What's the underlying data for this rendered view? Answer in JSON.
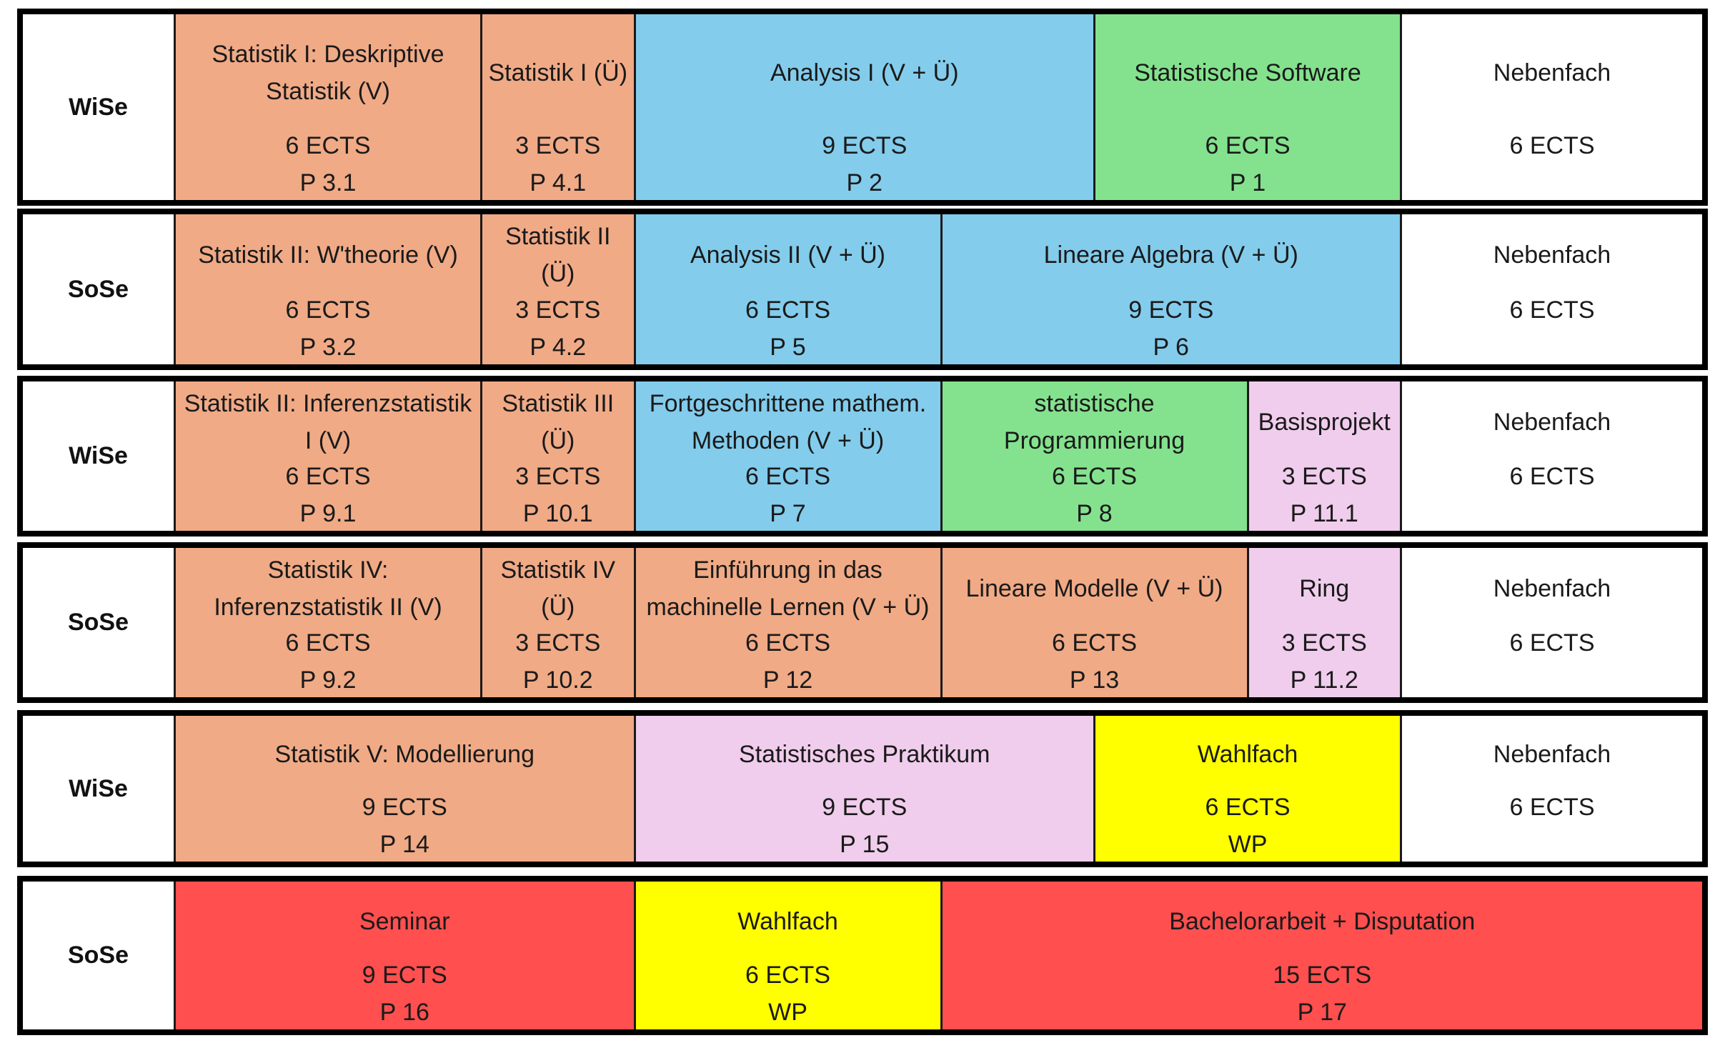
{
  "colors": {
    "statistik": "#f0aa86",
    "mathematik": "#83ccec",
    "informatik": "#84e28e",
    "projekt": "#f0cdec",
    "wahlfach": "#ffff00",
    "abschluss": "#ff4f4f",
    "nebenfach": "#ffffff"
  },
  "semesters": [
    {
      "label": "WiSe",
      "modules": [
        {
          "title": "Statistik I: Deskriptive Statistik (V)",
          "ects": "6 ECTS",
          "code": "P 3.1",
          "color": "statistik"
        },
        {
          "title": "Statistik I (Ü)",
          "ects": "3 ECTS",
          "code": "P 4.1",
          "color": "statistik"
        },
        {
          "title": "Analysis I (V + Ü)",
          "ects": "9 ECTS",
          "code": "P 2",
          "color": "mathematik"
        },
        {
          "title": "Statistische Software",
          "ects": "6 ECTS",
          "code": "P 1",
          "color": "informatik"
        },
        {
          "title": "Nebenfach",
          "ects": "6 ECTS",
          "code": "",
          "color": "nebenfach"
        }
      ]
    },
    {
      "label": "SoSe",
      "modules": [
        {
          "title": "Statistik II: W'theorie (V)",
          "ects": "6 ECTS",
          "code": "P 3.2",
          "color": "statistik"
        },
        {
          "title": "Statistik II (Ü)",
          "ects": "3 ECTS",
          "code": "P 4.2",
          "color": "statistik"
        },
        {
          "title": "Analysis II (V + Ü)",
          "ects": "6 ECTS",
          "code": "P 5",
          "color": "mathematik"
        },
        {
          "title": "Lineare Algebra (V + Ü)",
          "ects": "9 ECTS",
          "code": "P 6",
          "color": "mathematik"
        },
        {
          "title": "Nebenfach",
          "ects": "6 ECTS",
          "code": "",
          "color": "nebenfach"
        }
      ]
    },
    {
      "label": "WiSe",
      "modules": [
        {
          "title": "Statistik II: Inferenzstatistik I (V)",
          "ects": "6 ECTS",
          "code": "P 9.1",
          "color": "statistik"
        },
        {
          "title": "Statistik III (Ü)",
          "ects": "3 ECTS",
          "code": "P 10.1",
          "color": "statistik"
        },
        {
          "title": "Fortgeschrittene mathem. Methoden (V + Ü)",
          "ects": "6 ECTS",
          "code": "P 7",
          "color": "mathematik"
        },
        {
          "title": "statistische Programmierung",
          "ects": "6 ECTS",
          "code": "P 8",
          "color": "informatik"
        },
        {
          "title": "Basisprojekt",
          "ects": "3 ECTS",
          "code": "P 11.1",
          "color": "projekt"
        },
        {
          "title": "Nebenfach",
          "ects": "6 ECTS",
          "code": "",
          "color": "nebenfach"
        }
      ]
    },
    {
      "label": "SoSe",
      "modules": [
        {
          "title": "Statistik IV: Inferenzstatistik II (V)",
          "ects": "6 ECTS",
          "code": "P 9.2",
          "color": "statistik"
        },
        {
          "title": "Statistik IV (Ü)",
          "ects": "3 ECTS",
          "code": "P 10.2",
          "color": "statistik"
        },
        {
          "title": "Einführung in das machinelle Lernen (V + Ü)",
          "ects": "6 ECTS",
          "code": "P 12",
          "color": "statistik"
        },
        {
          "title": "Lineare Modelle (V + Ü)",
          "ects": "6 ECTS",
          "code": "P 13",
          "color": "statistik"
        },
        {
          "title": "Ring",
          "ects": "3 ECTS",
          "code": "P 11.2",
          "color": "projekt"
        },
        {
          "title": "Nebenfach",
          "ects": "6 ECTS",
          "code": "",
          "color": "nebenfach"
        }
      ]
    },
    {
      "label": "WiSe",
      "modules": [
        {
          "title": "Statistik V: Modellierung",
          "ects": "9 ECTS",
          "code": "P 14",
          "color": "statistik"
        },
        {
          "title": "Statistisches Praktikum",
          "ects": "9 ECTS",
          "code": "P 15",
          "color": "projekt"
        },
        {
          "title": "Wahlfach",
          "ects": "6 ECTS",
          "code": "WP",
          "color": "wahlfach"
        },
        {
          "title": "Nebenfach",
          "ects": "6 ECTS",
          "code": "",
          "color": "nebenfach"
        }
      ]
    },
    {
      "label": "SoSe",
      "modules": [
        {
          "title": "Seminar",
          "ects": "9 ECTS",
          "code": "P 16",
          "color": "abschluss"
        },
        {
          "title": "Wahlfach",
          "ects": "6 ECTS",
          "code": "WP",
          "color": "wahlfach"
        },
        {
          "title": "Bachelorarbeit + Disputation",
          "ects": "15 ECTS",
          "code": "P 17",
          "color": "abschluss"
        }
      ]
    }
  ]
}
